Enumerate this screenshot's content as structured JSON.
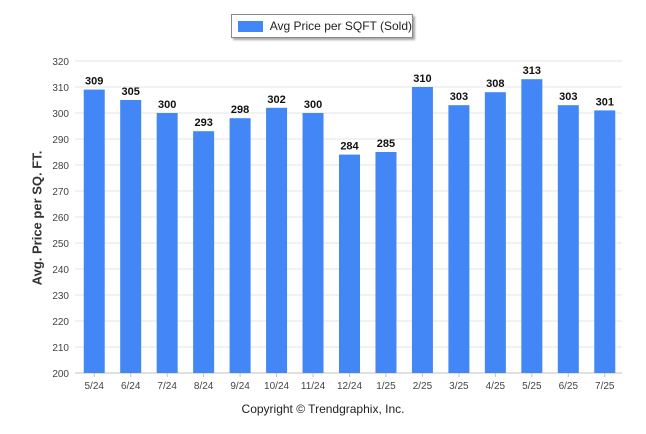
{
  "chart_data": {
    "type": "bar",
    "legend": "Avg Price per SQFT (Sold)",
    "legend_position": "top-center",
    "ylabel": "Avg. Price per SQ. FT.",
    "xlabel": "",
    "categories": [
      "5/24",
      "6/24",
      "7/24",
      "8/24",
      "9/24",
      "10/24",
      "11/24",
      "12/24",
      "1/25",
      "2/25",
      "3/25",
      "4/25",
      "5/25",
      "6/25",
      "7/25"
    ],
    "values": [
      309,
      305,
      300,
      293,
      298,
      302,
      300,
      284,
      285,
      310,
      303,
      308,
      313,
      303,
      301
    ],
    "ylim": [
      200,
      320
    ],
    "yticks": [
      200,
      210,
      220,
      230,
      240,
      250,
      260,
      270,
      280,
      290,
      300,
      310,
      320
    ],
    "grid": true,
    "bar_color": "#4287f5"
  },
  "footer": "Copyright © Trendgraphix, Inc."
}
